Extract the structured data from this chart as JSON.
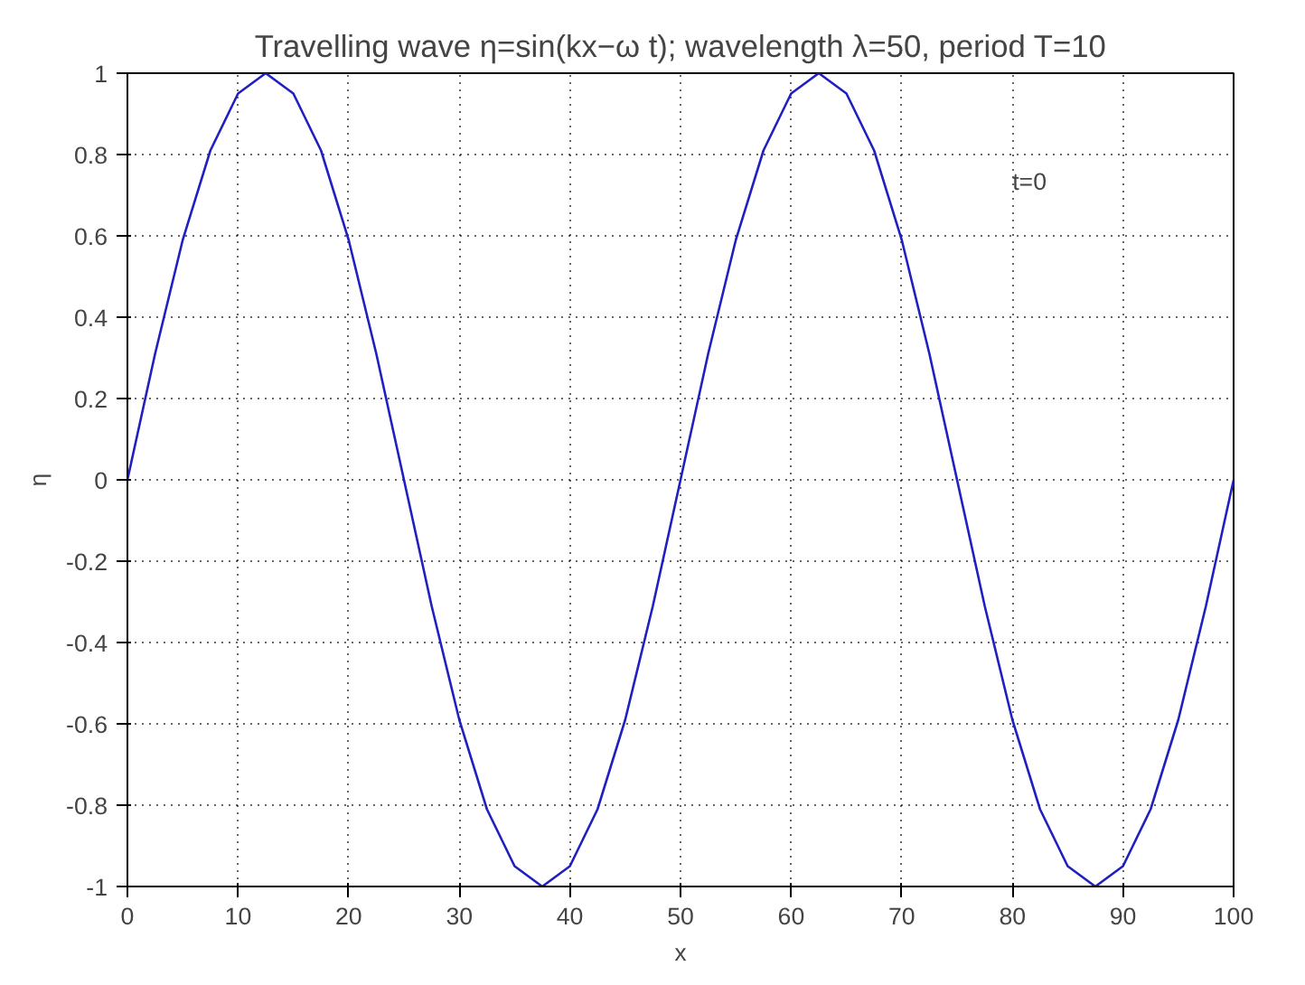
{
  "chart_data": {
    "type": "line",
    "title": "Travelling wave η=sin(kx−ω t); wavelength λ=50, period T=10",
    "xlabel": "x",
    "ylabel": "η",
    "annotations": [
      "t=0"
    ],
    "x": [
      0,
      2.5,
      5,
      7.5,
      10,
      12.5,
      15,
      17.5,
      20,
      22.5,
      25,
      27.5,
      30,
      32.5,
      35,
      37.5,
      40,
      42.5,
      45,
      47.5,
      50,
      52.5,
      55,
      57.5,
      60,
      62.5,
      65,
      67.5,
      70,
      72.5,
      75,
      77.5,
      80,
      82.5,
      85,
      87.5,
      90,
      92.5,
      95,
      97.5,
      100
    ],
    "series": [
      {
        "color": "#2020c0",
        "values": [
          0,
          0.31,
          0.59,
          0.81,
          0.95,
          1,
          0.95,
          0.81,
          0.59,
          0.31,
          0,
          -0.31,
          -0.59,
          -0.81,
          -0.95,
          -1,
          -0.95,
          -0.81,
          -0.59,
          -0.31,
          0,
          0.31,
          0.59,
          0.81,
          0.95,
          1,
          0.95,
          0.81,
          0.59,
          0.31,
          0,
          -0.31,
          -0.59,
          -0.81,
          -0.95,
          -1,
          -0.95,
          -0.81,
          -0.59,
          -0.31,
          0
        ]
      }
    ],
    "xlim": [
      0,
      100
    ],
    "ylim": [
      -1,
      1
    ],
    "xticks": [
      0,
      10,
      20,
      30,
      40,
      50,
      60,
      70,
      80,
      90,
      100
    ],
    "yticks": [
      -1,
      -0.8,
      -0.6,
      -0.4,
      -0.2,
      0,
      0.2,
      0.4,
      0.6,
      0.8,
      1
    ],
    "grid": true,
    "line_style": "solid",
    "marker": "none"
  }
}
